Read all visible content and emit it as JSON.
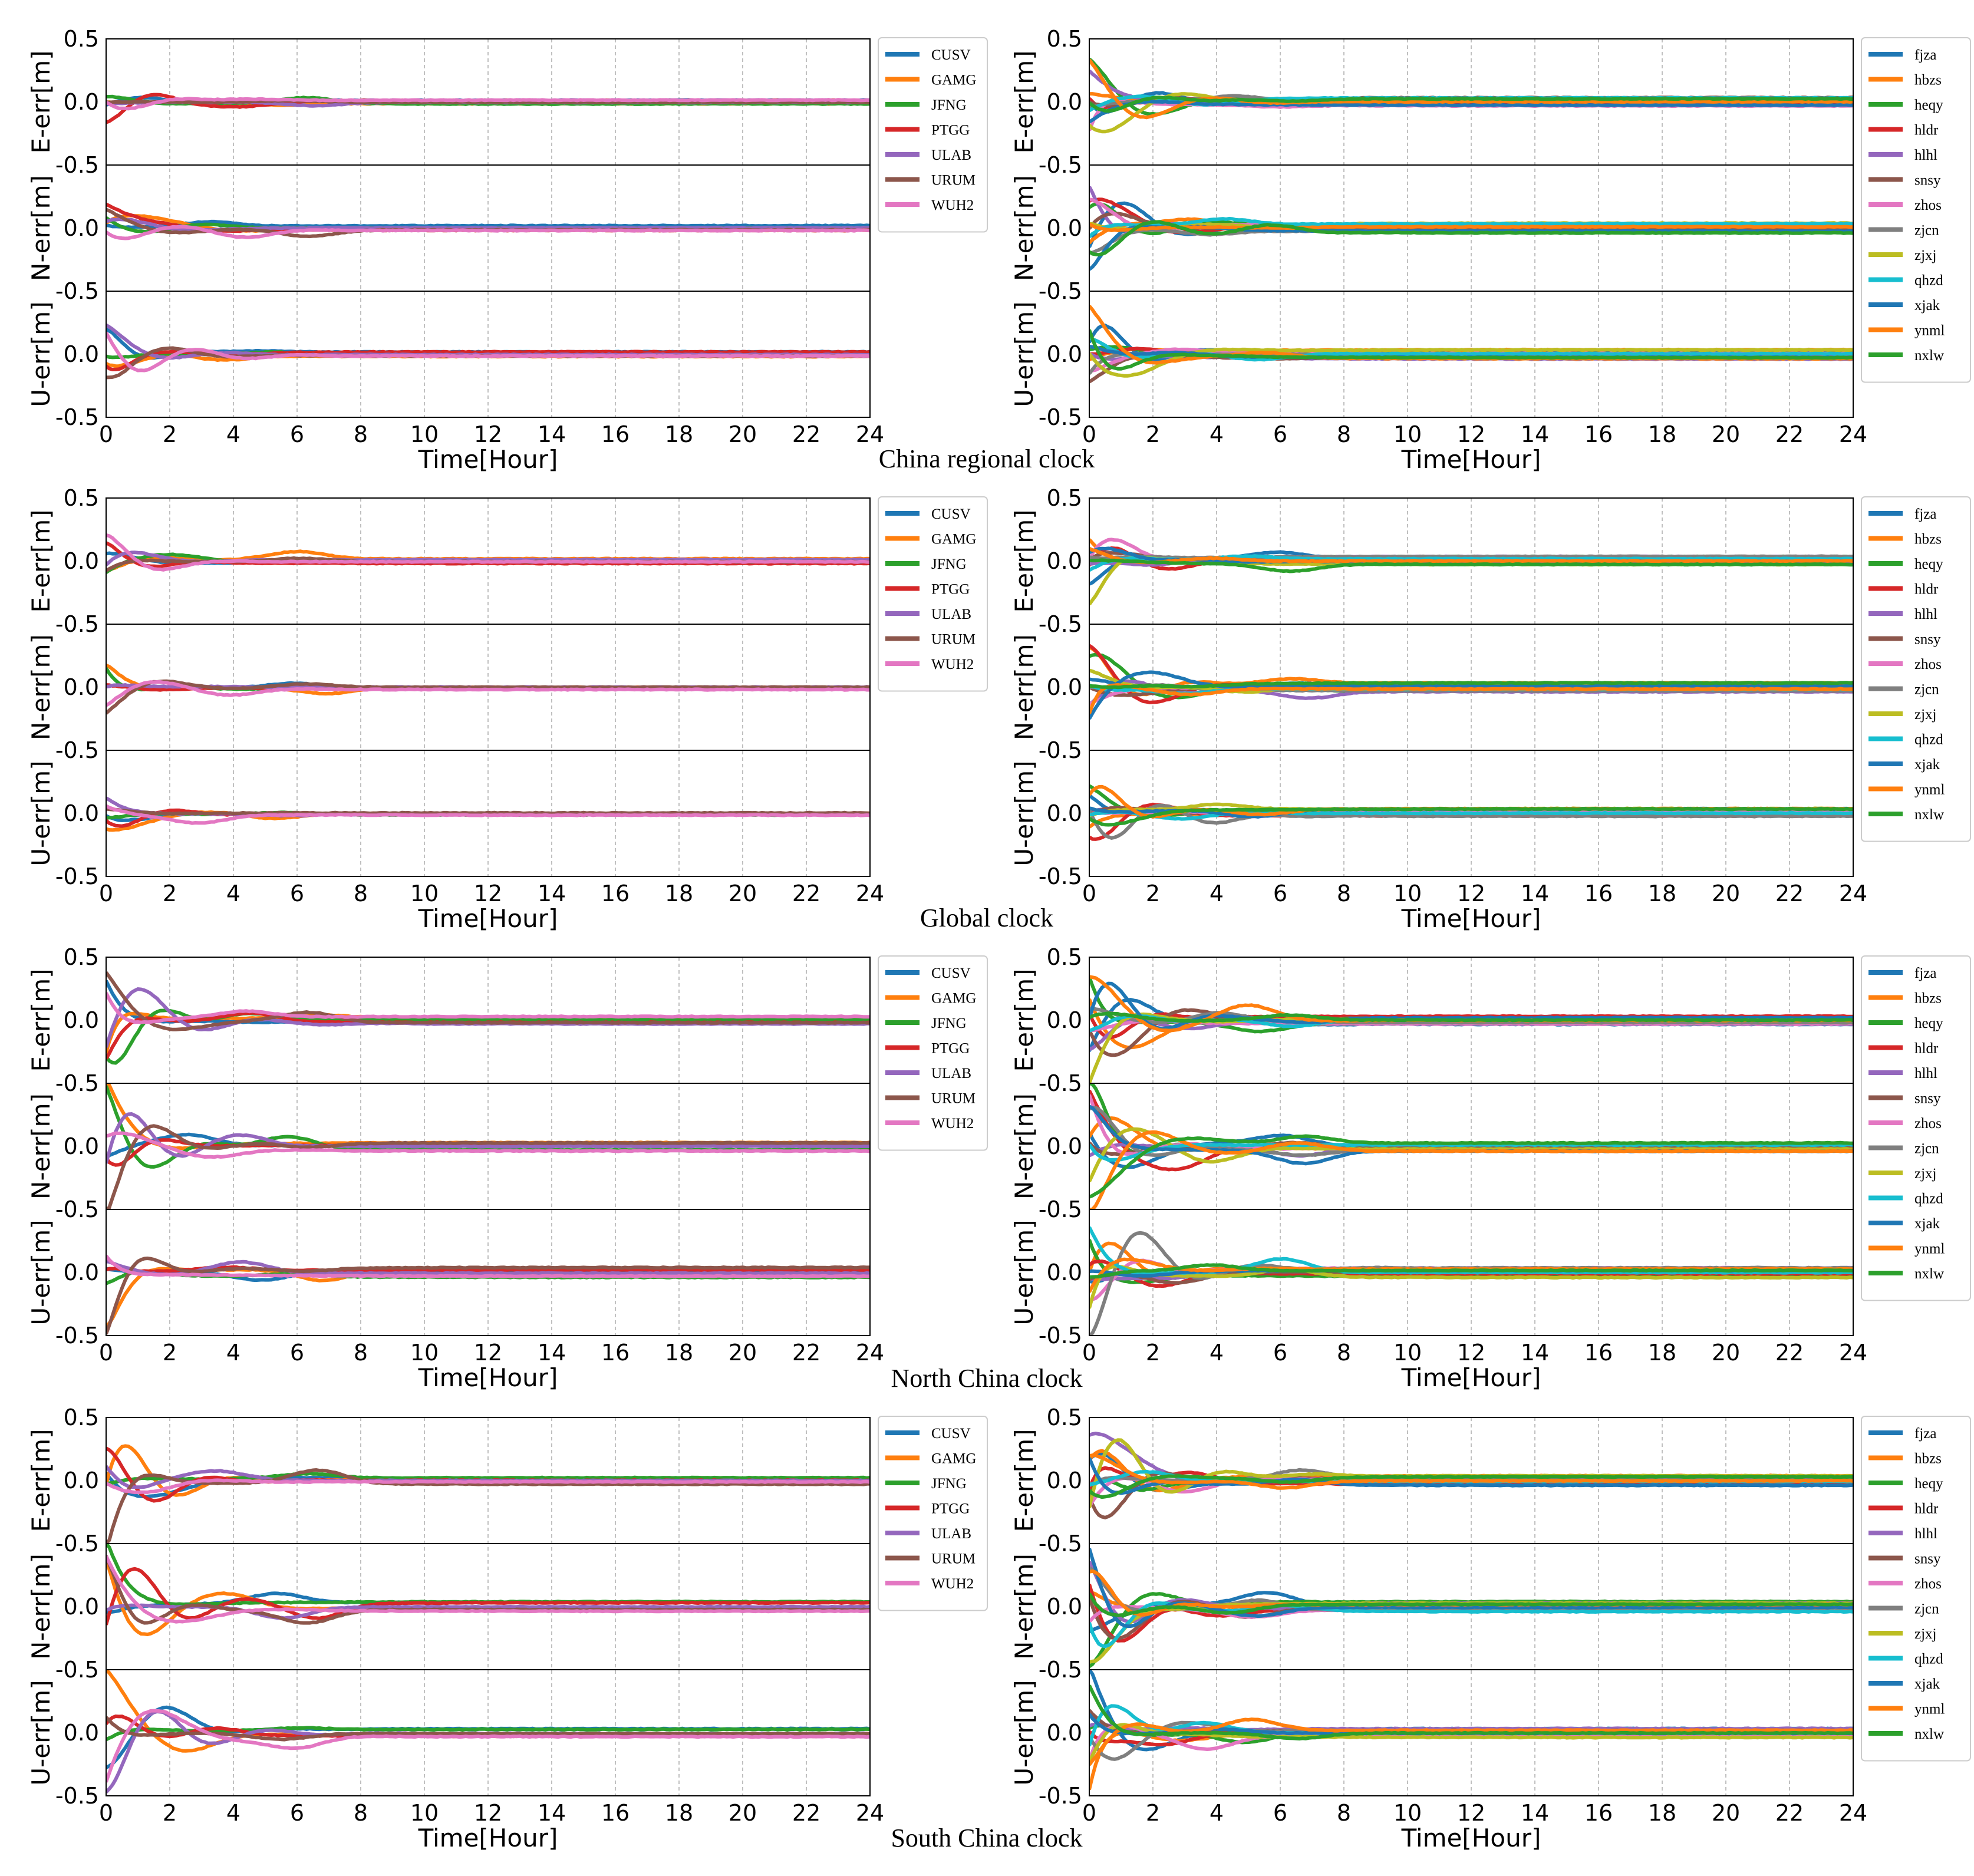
{
  "figure": {
    "captions": [
      "China regional clock",
      "Global clock",
      "North China clock",
      "South China clock"
    ]
  },
  "colors": {
    "CUSV": "#1f77b4",
    "GAMG": "#ff7f0e",
    "JFNG": "#2ca02c",
    "PTGG": "#d62728",
    "ULAB": "#9467bd",
    "URUM": "#8c564b",
    "WUH2": "#e377c2",
    "fjza": "#1f77b4",
    "hbzs": "#ff7f0e",
    "heqy": "#2ca02c",
    "hldr": "#d62728",
    "hlhl": "#9467bd",
    "snsy": "#8c564b",
    "zhos": "#e377c2",
    "zjcn": "#7f7f7f",
    "zjxj": "#bcbd22",
    "qhzd": "#17becf",
    "xjak": "#1f77b4",
    "ynml": "#ff7f0e",
    "nxlw": "#2ca02c"
  },
  "chart_data": [
    {
      "type": "line",
      "title": "China regional clock",
      "side": "left",
      "xlabel": "Time[Hour]",
      "ylabels": [
        "E-err[m]",
        "N-err[m]",
        "U-err[m]"
      ],
      "xlim": [
        0,
        24
      ],
      "ylim": [
        -0.5,
        0.5
      ],
      "xticks": [
        "0",
        "2",
        "4",
        "6",
        "8",
        "10",
        "12",
        "14",
        "16",
        "18",
        "20",
        "22",
        "24"
      ],
      "yticks": [
        "0.5",
        "0.0",
        "-0.5",
        "0.0",
        "-0.5",
        "0.0",
        "-0.5"
      ],
      "grid": "vertical-dashed",
      "legend": [
        "CUSV",
        "GAMG",
        "JFNG",
        "PTGG",
        "ULAB",
        "URUM",
        "WUH2"
      ],
      "legend_position": "right",
      "profile": "calm"
    },
    {
      "type": "line",
      "title": "China regional clock",
      "side": "right",
      "xlabel": "Time[Hour]",
      "ylabels": [
        "E-err[m]",
        "N-err[m]",
        "U-err[m]"
      ],
      "xlim": [
        0,
        24
      ],
      "ylim": [
        -0.5,
        0.5
      ],
      "xticks": [
        "0",
        "2",
        "4",
        "6",
        "8",
        "10",
        "12",
        "14",
        "16",
        "18",
        "20",
        "22",
        "24"
      ],
      "yticks": [
        "0.5",
        "0.0",
        "-0.5",
        "0.0",
        "-0.5",
        "0.0",
        "-0.5"
      ],
      "grid": "vertical-dashed",
      "legend": [
        "fjza",
        "hbzs",
        "heqy",
        "hldr",
        "hlhl",
        "snsy",
        "zhos",
        "zjcn",
        "zjxj",
        "qhzd",
        "xjak",
        "ynml",
        "nxlw"
      ],
      "legend_position": "right",
      "profile": "medium"
    },
    {
      "type": "line",
      "title": "Global clock",
      "side": "left",
      "xlabel": "Time[Hour]",
      "ylabels": [
        "E-err[m]",
        "N-err[m]",
        "U-err[m]"
      ],
      "xlim": [
        0,
        24
      ],
      "ylim": [
        -0.5,
        0.5
      ],
      "xticks": [
        "0",
        "2",
        "4",
        "6",
        "8",
        "10",
        "12",
        "14",
        "16",
        "18",
        "20",
        "22",
        "24"
      ],
      "yticks": [
        "0.5",
        "0.0",
        "-0.5",
        "0.0",
        "-0.5",
        "0.0",
        "-0.5"
      ],
      "grid": "vertical-dashed",
      "legend": [
        "CUSV",
        "GAMG",
        "JFNG",
        "PTGG",
        "ULAB",
        "URUM",
        "WUH2"
      ],
      "legend_position": "right",
      "profile": "calm"
    },
    {
      "type": "line",
      "title": "Global clock",
      "side": "right",
      "xlabel": "Time[Hour]",
      "ylabels": [
        "E-err[m]",
        "N-err[m]",
        "U-err[m]"
      ],
      "xlim": [
        0,
        24
      ],
      "ylim": [
        -0.5,
        0.5
      ],
      "xticks": [
        "0",
        "2",
        "4",
        "6",
        "8",
        "10",
        "12",
        "14",
        "16",
        "18",
        "20",
        "22",
        "24"
      ],
      "yticks": [
        "0.5",
        "0.0",
        "-0.5",
        "0.0",
        "-0.5",
        "0.0",
        "-0.5"
      ],
      "grid": "vertical-dashed",
      "legend": [
        "fjza",
        "hbzs",
        "heqy",
        "hldr",
        "hlhl",
        "snsy",
        "zhos",
        "zjcn",
        "zjxj",
        "qhzd",
        "xjak",
        "ynml",
        "nxlw"
      ],
      "legend_position": "right",
      "profile": "medium"
    },
    {
      "type": "line",
      "title": "North China clock",
      "side": "left",
      "xlabel": "Time[Hour]",
      "ylabels": [
        "E-err[m]",
        "N-err[m]",
        "U-err[m]"
      ],
      "xlim": [
        0,
        24
      ],
      "ylim": [
        -0.5,
        0.5
      ],
      "xticks": [
        "0",
        "2",
        "4",
        "6",
        "8",
        "10",
        "12",
        "14",
        "16",
        "18",
        "20",
        "22",
        "24"
      ],
      "yticks": [
        "0.5",
        "0.0",
        "-0.5",
        "0.0",
        "-0.5",
        "0.0",
        "-0.5"
      ],
      "grid": "vertical-dashed",
      "legend": [
        "CUSV",
        "GAMG",
        "JFNG",
        "PTGG",
        "ULAB",
        "URUM",
        "WUH2"
      ],
      "legend_position": "right",
      "profile": "noisy"
    },
    {
      "type": "line",
      "title": "North China clock",
      "side": "right",
      "xlabel": "Time[Hour]",
      "ylabels": [
        "E-err[m]",
        "N-err[m]",
        "U-err[m]"
      ],
      "xlim": [
        0,
        24
      ],
      "ylim": [
        -0.5,
        0.5
      ],
      "xticks": [
        "0",
        "2",
        "4",
        "6",
        "8",
        "10",
        "12",
        "14",
        "16",
        "18",
        "20",
        "22",
        "24"
      ],
      "yticks": [
        "0.5",
        "0.0",
        "-0.5",
        "0.0",
        "-0.5",
        "0.0",
        "-0.5"
      ],
      "grid": "vertical-dashed",
      "legend": [
        "fjza",
        "hbzs",
        "heqy",
        "hldr",
        "hlhl",
        "snsy",
        "zhos",
        "zjcn",
        "zjxj",
        "qhzd",
        "xjak",
        "ynml",
        "nxlw"
      ],
      "legend_position": "right",
      "profile": "noisy"
    },
    {
      "type": "line",
      "title": "South China clock",
      "side": "left",
      "xlabel": "Time[Hour]",
      "ylabels": [
        "E-err[m]",
        "N-err[m]",
        "U-err[m]"
      ],
      "xlim": [
        0,
        24
      ],
      "ylim": [
        -0.5,
        0.5
      ],
      "xticks": [
        "0",
        "2",
        "4",
        "6",
        "8",
        "10",
        "12",
        "14",
        "16",
        "18",
        "20",
        "22",
        "24"
      ],
      "yticks": [
        "0.5",
        "0.0",
        "-0.5",
        "0.0",
        "-0.5",
        "0.0",
        "-0.5"
      ],
      "grid": "vertical-dashed",
      "legend": [
        "CUSV",
        "GAMG",
        "JFNG",
        "PTGG",
        "ULAB",
        "URUM",
        "WUH2"
      ],
      "legend_position": "right",
      "profile": "noisy"
    },
    {
      "type": "line",
      "title": "South China clock",
      "side": "right",
      "xlabel": "Time[Hour]",
      "ylabels": [
        "E-err[m]",
        "N-err[m]",
        "U-err[m]"
      ],
      "xlim": [
        0,
        24
      ],
      "ylim": [
        -0.5,
        0.5
      ],
      "xticks": [
        "0",
        "2",
        "4",
        "6",
        "8",
        "10",
        "12",
        "14",
        "16",
        "18",
        "20",
        "22",
        "24"
      ],
      "yticks": [
        "0.5",
        "0.0",
        "-0.5",
        "0.0",
        "-0.5",
        "0.0",
        "-0.5"
      ],
      "grid": "vertical-dashed",
      "legend": [
        "fjza",
        "hbzs",
        "heqy",
        "hldr",
        "hlhl",
        "snsy",
        "zhos",
        "zjcn",
        "zjxj",
        "qhzd",
        "xjak",
        "ynml",
        "nxlw"
      ],
      "legend_position": "right",
      "profile": "noisy"
    }
  ]
}
